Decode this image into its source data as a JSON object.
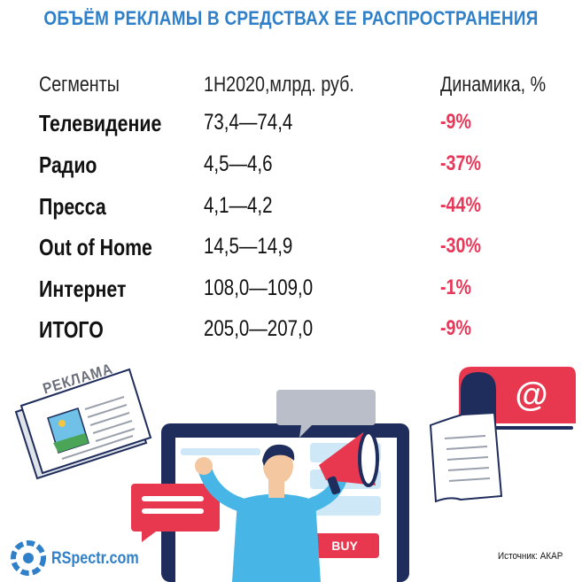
{
  "title": "ОБЪЁМ РЕКЛАМЫ В СРЕДСТВАХ ЕЕ РАСПРОСТРАНЕНИЯ",
  "table": {
    "headers": [
      "Сегменты",
      "1H2020,млрд. руб.",
      "Динамика, %"
    ],
    "rows": [
      {
        "segment": "Телевидение",
        "value": "73,4—74,4",
        "dynamics": "-9%"
      },
      {
        "segment": "Радио",
        "value": "4,5—4,6",
        "dynamics": "-37%"
      },
      {
        "segment": "Пресса",
        "value": "4,1—4,2",
        "dynamics": "-44%"
      },
      {
        "segment": "Out of Home",
        "value": "14,5—14,9",
        "dynamics": "-30%"
      },
      {
        "segment": "Интернет",
        "value": "108,0—109,0",
        "dynamics": "-1%"
      },
      {
        "segment": "ИТОГО",
        "value": "205,0—207,0",
        "dynamics": "-9%"
      }
    ]
  },
  "illustration": {
    "newspaper_label": "РЕКЛАМА",
    "buy_label": "BUY",
    "mail_symbol": "@"
  },
  "logo": "RSpectr.com",
  "source": "Источник: АКАР",
  "colors": {
    "title": "#2f80c8",
    "negative": "#e8385a",
    "accent_red": "#e8384f",
    "navy": "#1f2d5c",
    "light_blue": "#47b6e6"
  }
}
